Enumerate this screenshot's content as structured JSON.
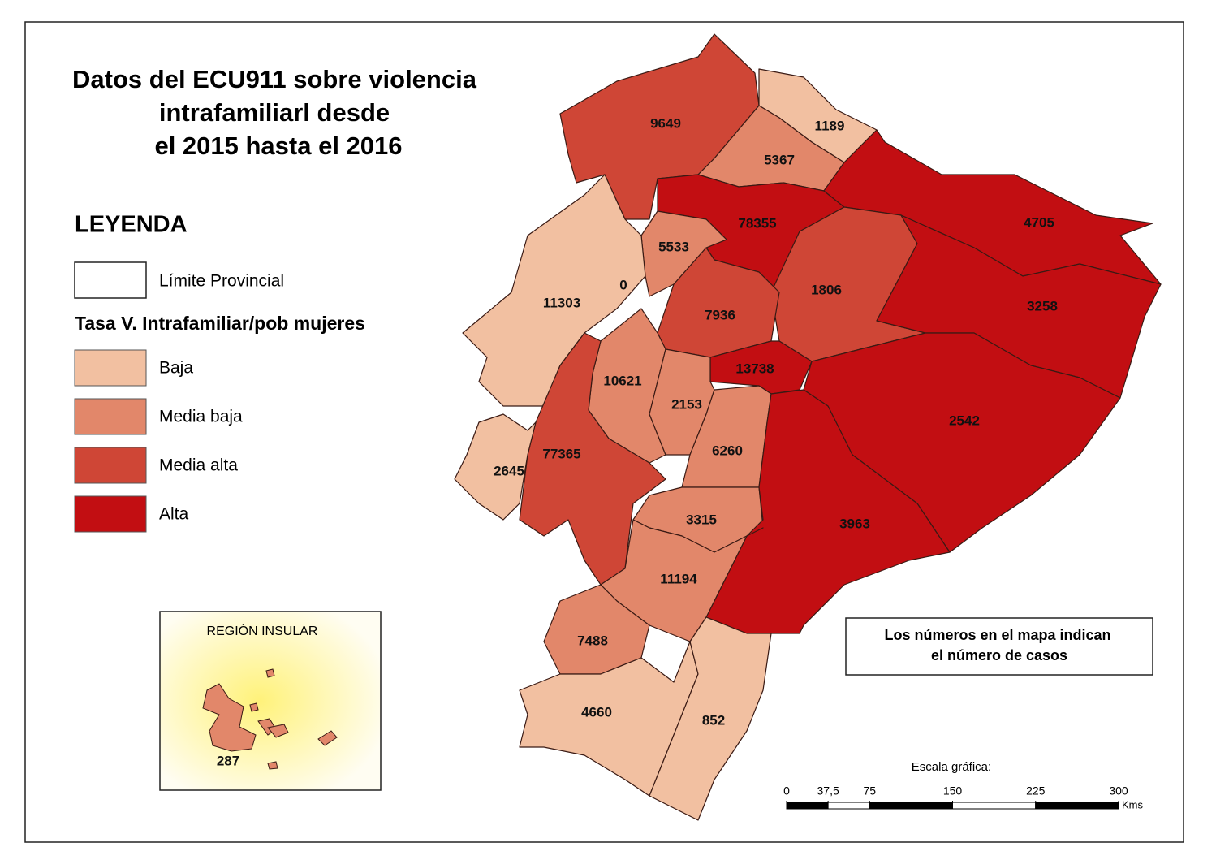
{
  "title": [
    "Datos del ECU911 sobre violencia",
    "intrafamiliarl desde",
    "el 2015 hasta el 2016"
  ],
  "legend": {
    "title": "LEYENDA",
    "boundary": "Límite Provincial",
    "rate_title": "Tasa V. Intrafamiliar/pob mujeres",
    "classes": [
      {
        "label": "Baja",
        "color": "#f2c0a1"
      },
      {
        "label": "Media baja",
        "color": "#e2876a"
      },
      {
        "label": "Media alta",
        "color": "#cf4636"
      },
      {
        "label": "Alta",
        "color": "#c20e12"
      }
    ]
  },
  "provinces": [
    {
      "cases": 9649,
      "class": 2
    },
    {
      "cases": 1189,
      "class": 0
    },
    {
      "cases": 5367,
      "class": 1
    },
    {
      "cases": 78355,
      "class": 3
    },
    {
      "cases": 4705,
      "class": 3
    },
    {
      "cases": 5533,
      "class": 1
    },
    {
      "cases": 11303,
      "class": 0
    },
    {
      "cases": 0
    },
    {
      "cases": 1806,
      "class": 2
    },
    {
      "cases": 3258,
      "class": 3
    },
    {
      "cases": 7936,
      "class": 2
    },
    {
      "cases": 13738,
      "class": 3
    },
    {
      "cases": 10621,
      "class": 1
    },
    {
      "cases": 2153,
      "class": 1
    },
    {
      "cases": 2542,
      "class": 3
    },
    {
      "cases": 6260,
      "class": 1
    },
    {
      "cases": 77365,
      "class": 2
    },
    {
      "cases": 2645,
      "class": 0
    },
    {
      "cases": 3315,
      "class": 1
    },
    {
      "cases": 3963,
      "class": 3
    },
    {
      "cases": 11194,
      "class": 1
    },
    {
      "cases": 7488,
      "class": 1
    },
    {
      "cases": 4660,
      "class": 0
    },
    {
      "cases": 852,
      "class": 0
    }
  ],
  "insular": {
    "title": "REGIÓN INSULAR",
    "cases": 287,
    "class": 1
  },
  "note": [
    "Los números en el mapa indican",
    "el número de casos"
  ],
  "scale": {
    "title": "Escala gráfica:",
    "ticks": [
      0,
      {
        "value": 37.5,
        "label": "37,5"
      },
      75,
      150,
      225,
      300
    ],
    "unit": "Kms"
  }
}
